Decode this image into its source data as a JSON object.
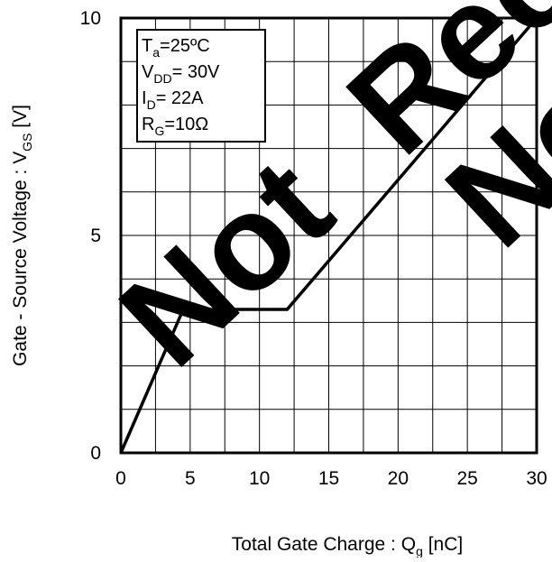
{
  "chart_data": {
    "type": "line",
    "xlabel": "Total Gate Charge : Q",
    "xlabel_sub": "g",
    "xlabel_unit": " [nC]",
    "ylabel": "Gate - Source Voltage : V",
    "ylabel_sub": "GS",
    "ylabel_unit": " [V]",
    "xlim": [
      0,
      30
    ],
    "ylim": [
      0,
      10
    ],
    "x_ticks": [
      0,
      5,
      10,
      15,
      20,
      25,
      30
    ],
    "y_ticks": [
      0,
      5,
      10
    ],
    "x_grid_step": 2.5,
    "y_grid_step": 1,
    "grid": true,
    "series": [
      {
        "x": [
          0,
          4.5,
          12,
          30
        ],
        "y": [
          0,
          3.3,
          3.3,
          10
        ]
      }
    ],
    "conditions": [
      {
        "main": "T",
        "sub": "a",
        "rest": "=25ºC"
      },
      {
        "main": "V",
        "sub": "DD",
        "rest": "= 30V"
      },
      {
        "main": "I",
        "sub": "D",
        "rest": "= 22A"
      },
      {
        "main": "R",
        "sub": "G",
        "rest": "=10Ω"
      }
    ],
    "conditions_placement": "top-left",
    "watermark": [
      "Not",
      "Recommended for",
      "New"
    ]
  },
  "colors": {
    "background": "#ffffff",
    "line": "#000000",
    "grid": "#000000",
    "watermark": "#000000"
  }
}
